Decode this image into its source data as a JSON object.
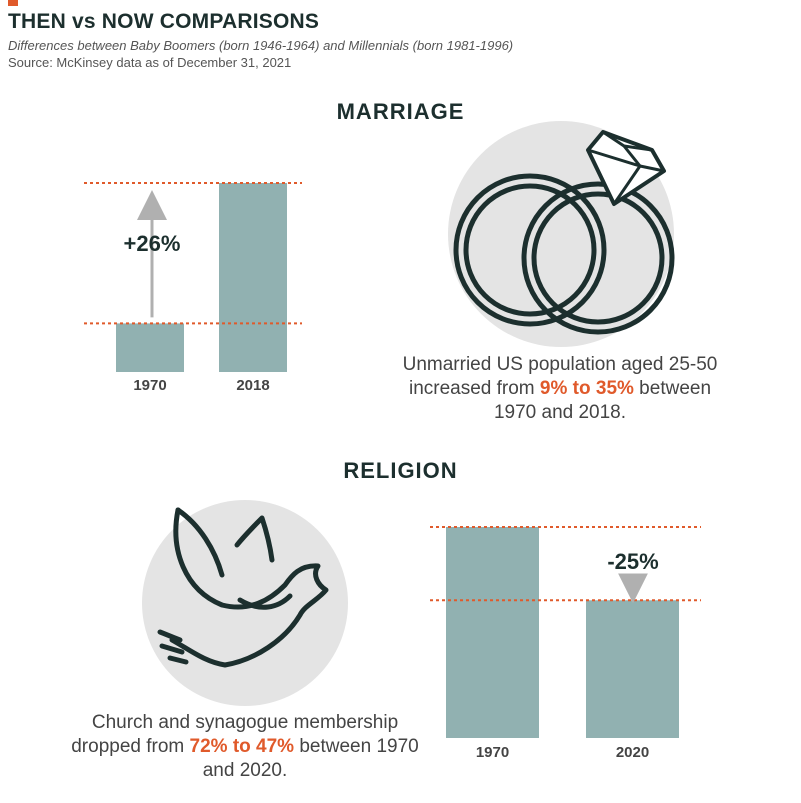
{
  "header": {
    "title": "THEN vs NOW COMPARISONS",
    "subtitle": "Differences between Baby Boomers (born 1946-1964) and Millennials (born 1981-1996)",
    "source": "Source: McKinsey data as of December 31, 2021"
  },
  "colors": {
    "accent": "#e05a2b",
    "bar": "#91b1b1",
    "dark": "#1c2f2e",
    "circle": "#e4e4e4",
    "arrow": "#b0b0b0"
  },
  "marriage": {
    "heading": "MARRIAGE",
    "caption_pre": "Unmarried US population aged 25-50 increased from ",
    "caption_hl": "9% to 35%",
    "caption_post": " between 1970 and 2018.",
    "icon": "wedding-rings-icon"
  },
  "religion": {
    "heading": "RELIGION",
    "caption_pre": "Church and synagogue membership dropped from ",
    "caption_hl": "72% to 47%",
    "caption_post": " between 1970 and 2020.",
    "icon": "dove-icon"
  },
  "chart_data": [
    {
      "type": "bar",
      "categories": [
        "1970",
        "2018"
      ],
      "values": [
        9,
        35
      ],
      "change_label": "+26%",
      "ylim": [
        0,
        35
      ]
    },
    {
      "type": "bar",
      "categories": [
        "1970",
        "2020"
      ],
      "values": [
        72,
        47
      ],
      "change_label": "-25%",
      "ylim": [
        0,
        72
      ]
    }
  ]
}
